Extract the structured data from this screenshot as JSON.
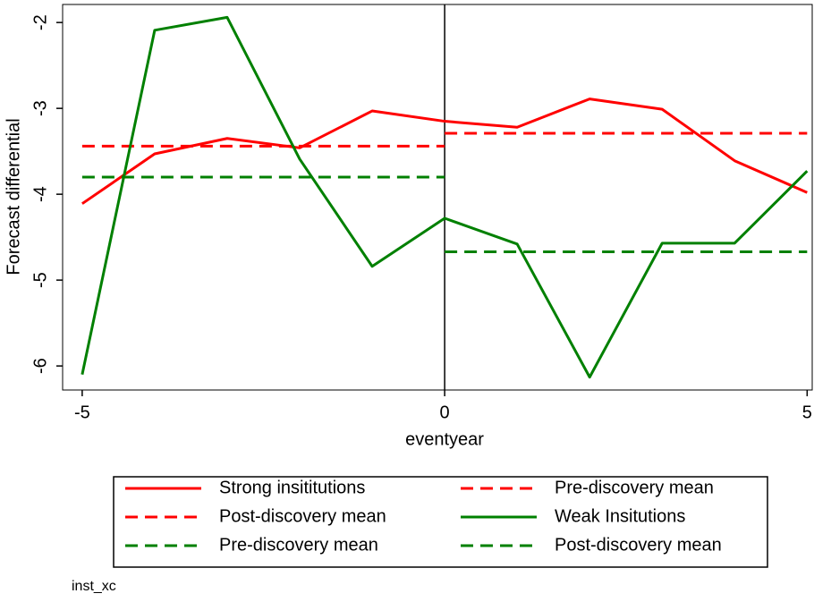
{
  "chart_data": {
    "type": "line",
    "y_label": "Forecast differential",
    "x_label": "eventyear",
    "x": [
      -5,
      -4,
      -3,
      -2,
      -1,
      0,
      1,
      2,
      3,
      4,
      5
    ],
    "series": [
      {
        "name": "Strong insititutions",
        "color": "#ff0000",
        "dashed": false,
        "values": [
          -4.11,
          -3.53,
          -3.35,
          -3.46,
          -3.03,
          -3.15,
          -3.22,
          -2.89,
          -3.01,
          -3.61,
          -3.98
        ]
      },
      {
        "name": "Pre-discovery mean",
        "color": "#ff0000",
        "dashed": true,
        "x": [
          -5,
          0
        ],
        "values": [
          -3.44,
          -3.44
        ]
      },
      {
        "name": "Post-discovery mean",
        "color": "#ff0000",
        "dashed": true,
        "x": [
          0,
          5
        ],
        "values": [
          -3.29,
          -3.29
        ]
      },
      {
        "name": "Weak Insitutions",
        "color": "#008000",
        "dashed": false,
        "values": [
          -6.1,
          -2.09,
          -1.94,
          -3.59,
          -4.84,
          -4.28,
          -4.58,
          -6.13,
          -4.57,
          -4.57,
          -3.73
        ]
      },
      {
        "name": "Pre-discovery mean",
        "color": "#008000",
        "dashed": true,
        "x": [
          -5,
          0
        ],
        "values": [
          -3.8,
          -3.8
        ]
      },
      {
        "name": "Post-discovery mean",
        "color": "#008000",
        "dashed": true,
        "x": [
          0,
          5
        ],
        "values": [
          -4.67,
          -4.67
        ]
      }
    ],
    "xline": 0,
    "xlim": [
      -5.27,
      5.07
    ],
    "ylim": [
      -6.28,
      -1.79
    ],
    "xticks": [
      -5,
      0,
      5
    ],
    "yticks": [
      -6,
      -5,
      -4,
      -3,
      -2
    ],
    "grid": false,
    "legend": "bottom",
    "note": "inst_xc"
  }
}
